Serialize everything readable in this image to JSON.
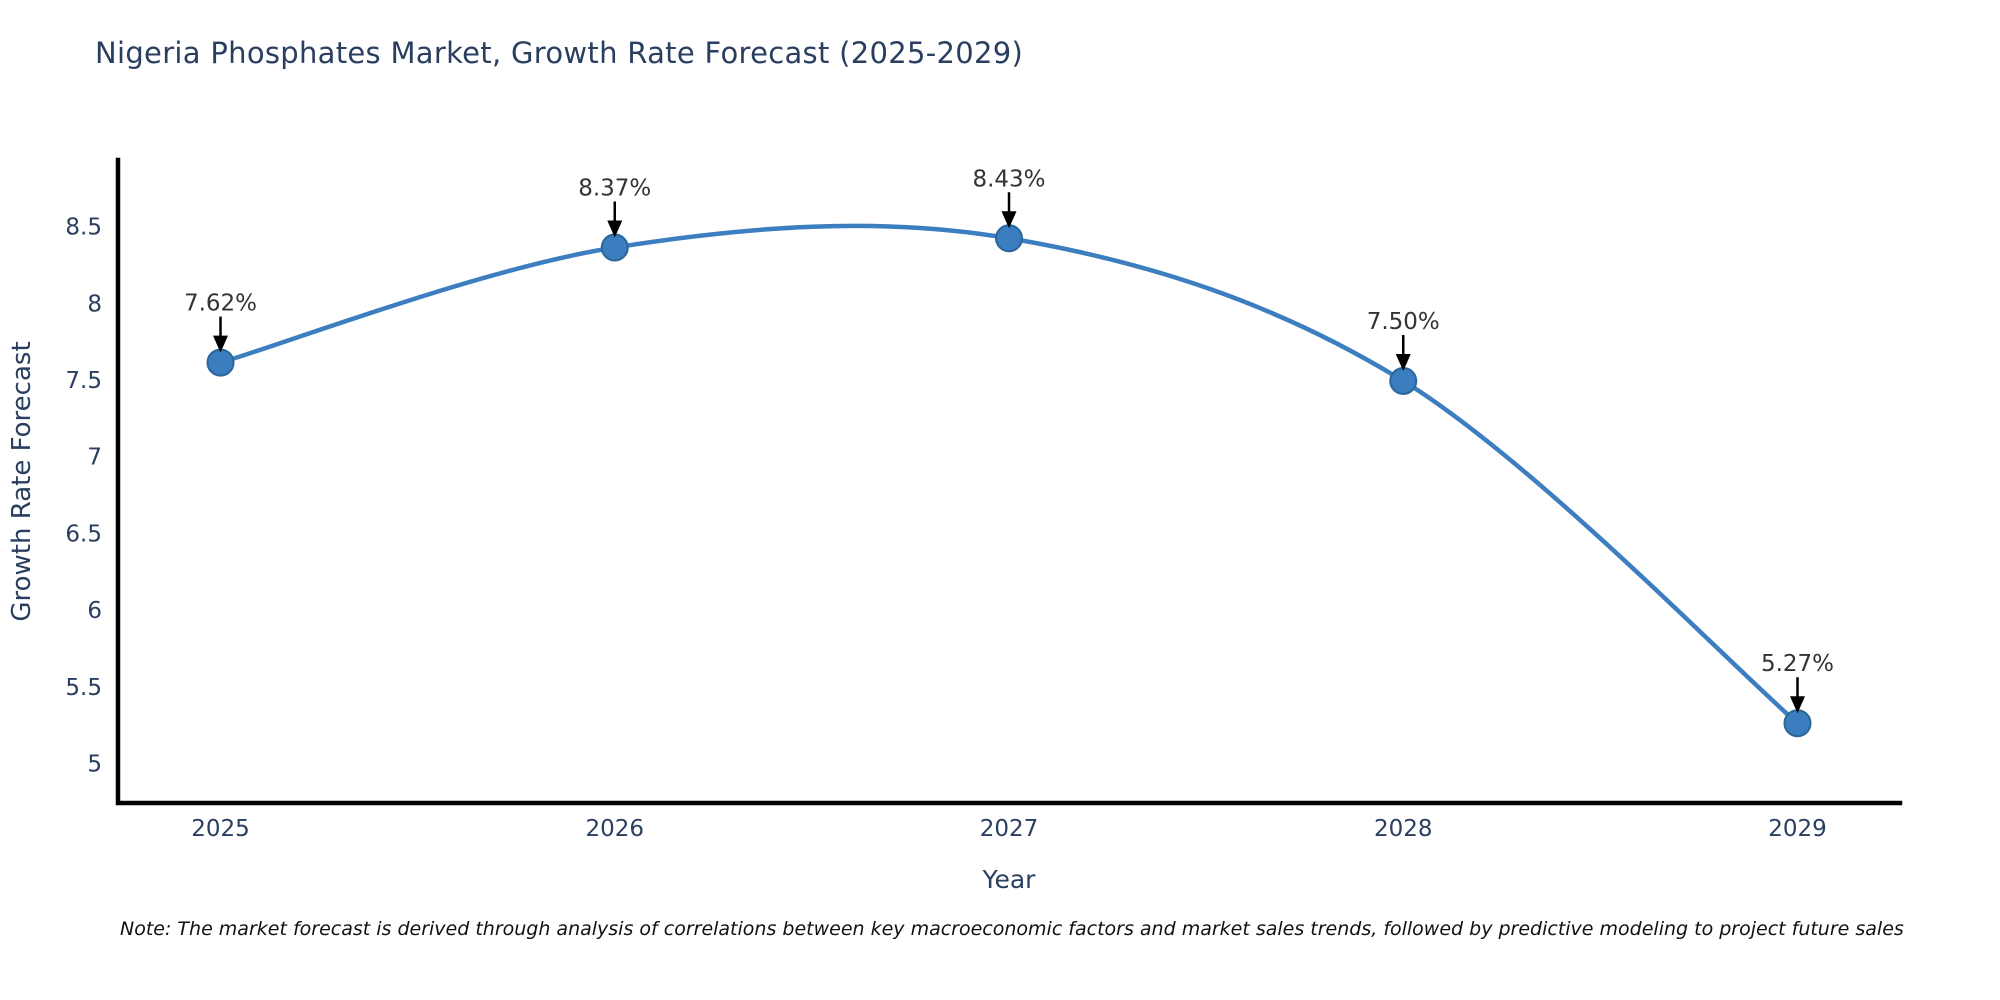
{
  "page": {
    "background": "#ffffff"
  },
  "title": "Nigeria Phosphates Market, Growth Rate Forecast (2025-2029)",
  "note": "Note: The market forecast is derived through analysis of correlations between key macroeconomic factors and market sales trends, followed by predictive modeling to project future sales",
  "chart_data": {
    "type": "line",
    "title": "Nigeria Phosphates Market, Growth Rate Forecast (2025-2029)",
    "xlabel": "Year",
    "ylabel": "Growth Rate Forecast",
    "x": [
      2025,
      2026,
      2027,
      2028,
      2029
    ],
    "categories": [
      "2025",
      "2026",
      "2027",
      "2028",
      "2029"
    ],
    "values": [
      7.62,
      8.37,
      8.43,
      7.5,
      5.27
    ],
    "point_labels": [
      "7.62%",
      "8.37%",
      "8.43%",
      "7.50%",
      "5.27%"
    ],
    "y_ticks": [
      5,
      5.5,
      6,
      6.5,
      7,
      7.5,
      8,
      8.5
    ],
    "xlim": [
      2024.74,
      2029.26
    ],
    "ylim": [
      4.75,
      8.94
    ],
    "grid": false,
    "legend": "none",
    "smooth": true,
    "annotation_arrows": true,
    "colors": {
      "line": "#3c7ebf",
      "marker_fill": "#3a7ebf",
      "marker_edge": "#2b6699",
      "axis": "#000000",
      "tick_text": "#2a3f5f",
      "annotation_text": "#333333",
      "arrow": "#000000",
      "title_text": "#2a3f5f"
    }
  }
}
